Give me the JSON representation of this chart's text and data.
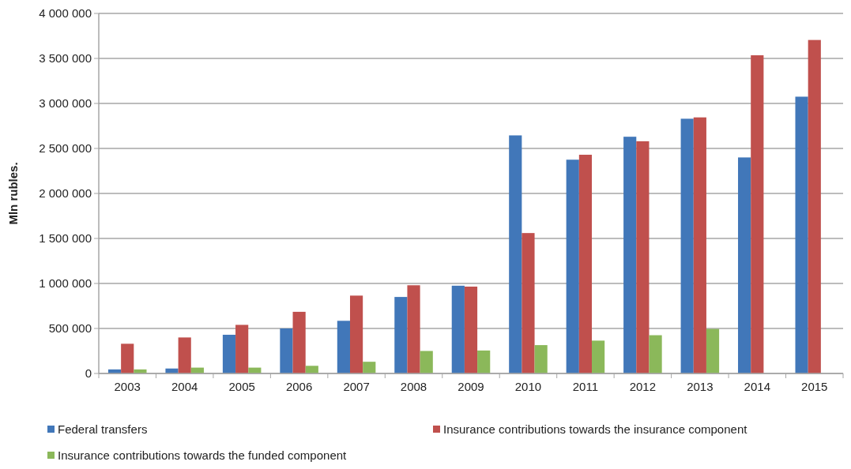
{
  "chart_data": {
    "type": "bar",
    "ylabel": "Mln rubles.",
    "categories": [
      "2003",
      "2004",
      "2005",
      "2006",
      "2007",
      "2008",
      "2009",
      "2010",
      "2011",
      "2012",
      "2013",
      "2014",
      "2015"
    ],
    "series": [
      {
        "name": "Federal transfers",
        "color": "#4177b9",
        "values": [
          45000,
          55000,
          430000,
          500000,
          585000,
          850000,
          975000,
          2645000,
          2375000,
          2630000,
          2830000,
          2400000,
          3075000
        ]
      },
      {
        "name": "Insurance contributions towards the insurance component",
        "color": "#c0504d",
        "values": [
          330000,
          400000,
          540000,
          685000,
          865000,
          980000,
          965000,
          1560000,
          2430000,
          2580000,
          2845000,
          3535000,
          3705000
        ]
      },
      {
        "name": "Insurance contributions towards the funded component",
        "color": "#8bb85a",
        "values": [
          45000,
          65000,
          65000,
          85000,
          130000,
          250000,
          255000,
          315000,
          365000,
          425000,
          495000,
          null,
          null
        ]
      }
    ],
    "ylim": [
      0,
      4000000
    ],
    "yticks": [
      {
        "value": 0,
        "label": "0"
      },
      {
        "value": 500000,
        "label": "500 000"
      },
      {
        "value": 1000000,
        "label": "1 000 000"
      },
      {
        "value": 1500000,
        "label": "1 500 000"
      },
      {
        "value": 2000000,
        "label": "2 000 000"
      },
      {
        "value": 2500000,
        "label": "2 500 000"
      },
      {
        "value": 3000000,
        "label": "3 000 000"
      },
      {
        "value": 3500000,
        "label": "3 500 000"
      },
      {
        "value": 4000000,
        "label": "4 000 000"
      }
    ],
    "grid": "y",
    "legend": "bottom"
  }
}
